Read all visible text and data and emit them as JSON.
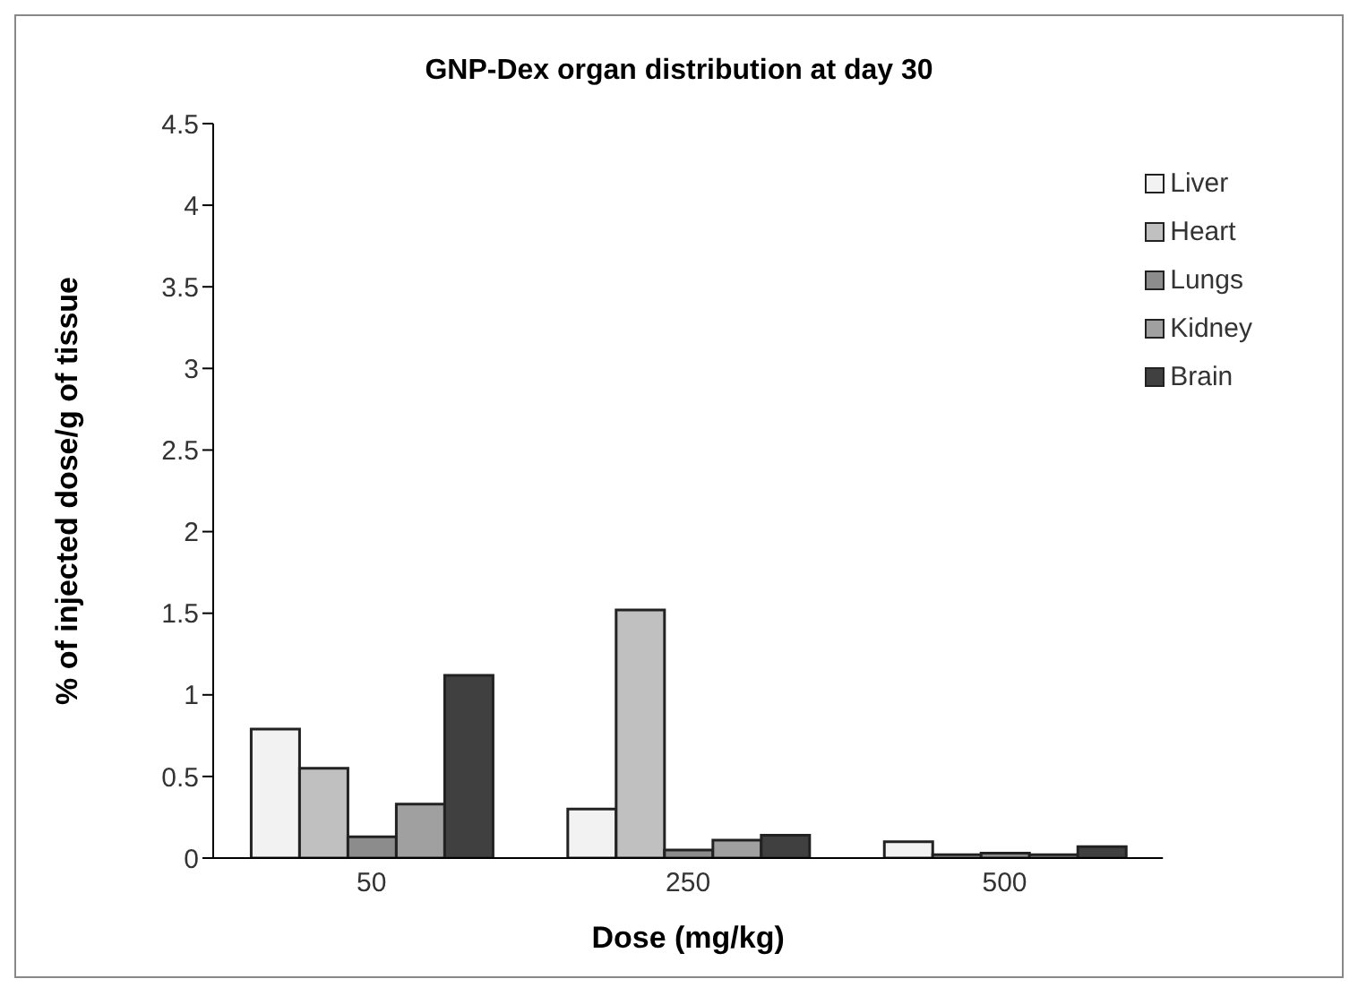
{
  "chart_data": {
    "type": "bar",
    "title": "GNP-Dex organ distribution at day 30",
    "xlabel": "Dose (mg/kg)",
    "ylabel": "% of injected dose/g of tissue",
    "categories": [
      "50",
      "250",
      "500"
    ],
    "series": [
      {
        "name": "Liver",
        "color": "#f2f2f2",
        "values": [
          0.79,
          0.3,
          0.1
        ]
      },
      {
        "name": "Heart",
        "color": "#c0c0c0",
        "values": [
          0.55,
          1.52,
          0.02
        ]
      },
      {
        "name": "Lungs",
        "color": "#8c8c8c",
        "values": [
          0.13,
          0.05,
          0.03
        ]
      },
      {
        "name": "Kidney",
        "color": "#a0a0a0",
        "values": [
          0.33,
          0.11,
          0.02
        ]
      },
      {
        "name": "Brain",
        "color": "#404040",
        "values": [
          1.12,
          0.14,
          0.07
        ]
      }
    ],
    "ylim": [
      0,
      4.5
    ],
    "yticks": [
      0,
      0.5,
      1,
      1.5,
      2,
      2.5,
      3,
      3.5,
      4,
      4.5
    ],
    "grid": false,
    "legend": "top right"
  }
}
